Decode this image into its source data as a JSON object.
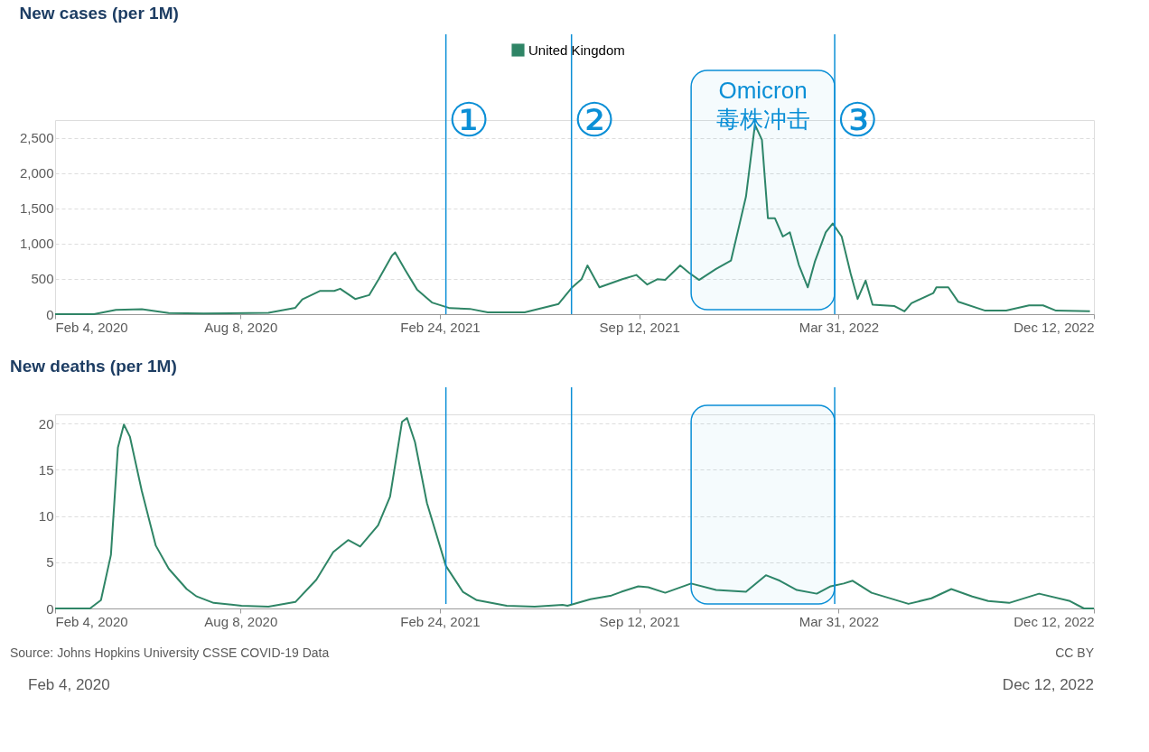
{
  "chart_data": [
    {
      "type": "line",
      "title": "New cases (per 1M)",
      "legend": "top",
      "grid": "y",
      "xlim": [
        "2020-02-04",
        "2022-12-12"
      ],
      "xticks": [
        {
          "value": "2020-02-04",
          "label": "Feb 4, 2020"
        },
        {
          "value": "2020-08-08",
          "label": "Aug 8, 2020"
        },
        {
          "value": "2021-02-24",
          "label": "Feb 24, 2021"
        },
        {
          "value": "2021-09-12",
          "label": "Sep 12, 2021"
        },
        {
          "value": "2022-03-31",
          "label": "Mar 31, 2022"
        },
        {
          "value": "2022-12-12",
          "label": "Dec 12, 2022"
        }
      ],
      "ylim": [
        0,
        2750
      ],
      "yticks": [
        0,
        500,
        {
          "value": 1000,
          "label": "1,000"
        },
        {
          "value": 1500,
          "label": "1,500"
        },
        {
          "value": 2000,
          "label": "2,000"
        },
        {
          "value": 2500,
          "label": "2,500"
        }
      ],
      "series": [
        {
          "name": "United Kingdom",
          "color": "#2f8566",
          "x": [
            "2020-02-04",
            "2020-03-14",
            "2020-04-05",
            "2020-05-01",
            "2020-05-28",
            "2020-07-02",
            "2020-09-05",
            "2020-10-02",
            "2020-10-09",
            "2020-10-27",
            "2020-11-10",
            "2020-11-16",
            "2020-12-01",
            "2020-12-15",
            "2020-12-25",
            "2021-01-07",
            "2021-01-10",
            "2021-01-20",
            "2021-02-01",
            "2021-02-16",
            "2021-03-06",
            "2021-03-26",
            "2021-04-13",
            "2021-05-20",
            "2021-06-23",
            "2021-07-06",
            "2021-07-16",
            "2021-07-22",
            "2021-08-03",
            "2021-08-26",
            "2021-09-09",
            "2021-09-20",
            "2021-09-30",
            "2021-10-08",
            "2021-10-23",
            "2021-11-01",
            "2021-11-11",
            "2021-11-28",
            "2021-12-13",
            "2021-12-28",
            "2022-01-06",
            "2022-01-13",
            "2022-01-19",
            "2022-01-26",
            "2022-02-03",
            "2022-02-10",
            "2022-02-19",
            "2022-02-28",
            "2022-03-07",
            "2022-03-18",
            "2022-03-25",
            "2022-04-03",
            "2022-04-12",
            "2022-04-19",
            "2022-04-27",
            "2022-05-04",
            "2022-05-26",
            "2022-06-05",
            "2022-06-12",
            "2022-07-04",
            "2022-07-07",
            "2022-07-19",
            "2022-07-29",
            "2022-08-25",
            "2022-09-15",
            "2022-10-08",
            "2022-10-22",
            "2022-11-04",
            "2022-12-08"
          ],
          "values": [
            0,
            0,
            60,
            70,
            15,
            10,
            20,
            90,
            210,
            330,
            330,
            360,
            215,
            270,
            505,
            830,
            875,
            630,
            350,
            165,
            85,
            75,
            25,
            25,
            145,
            370,
            495,
            690,
            380,
            495,
            555,
            420,
            495,
            485,
            690,
            585,
            485,
            640,
            760,
            1665,
            2685,
            2470,
            1360,
            1360,
            1100,
            1160,
            700,
            380,
            740,
            1160,
            1285,
            1100,
            575,
            215,
            475,
            135,
            115,
            40,
            155,
            300,
            380,
            380,
            175,
            50,
            50,
            125,
            125,
            50,
            40
          ]
        }
      ],
      "ref_lines": [
        {
          "axis": "x",
          "value": "2021-03-02",
          "label": "①",
          "color": "#0b8fd6"
        },
        {
          "axis": "x",
          "value": "2021-07-06",
          "label": "②",
          "color": "#0b8fd6"
        },
        {
          "axis": "x",
          "value": "2022-03-27",
          "label": "③",
          "color": "#0b8fd6"
        }
      ],
      "bands": [
        {
          "axis": "x",
          "from": "2021-11-03",
          "to": "2022-03-27",
          "label": "Omicron 毒株冲击",
          "color": "#0b8fd6"
        }
      ]
    },
    {
      "type": "line",
      "title": "New deaths (per 1M)",
      "grid": "y",
      "xlim": [
        "2020-02-04",
        "2022-12-12"
      ],
      "xticks": [
        {
          "value": "2020-02-04",
          "label": "Feb 4, 2020"
        },
        {
          "value": "2020-08-08",
          "label": "Aug 8, 2020"
        },
        {
          "value": "2021-02-24",
          "label": "Feb 24, 2021"
        },
        {
          "value": "2021-09-12",
          "label": "Sep 12, 2021"
        },
        {
          "value": "2022-03-31",
          "label": "Mar 31, 2022"
        },
        {
          "value": "2022-12-12",
          "label": "Dec 12, 2022"
        }
      ],
      "ylim": [
        0,
        21
      ],
      "yticks": [
        0,
        5,
        10,
        15,
        20
      ],
      "series": [
        {
          "color": "#2f8566",
          "x": [
            "2020-02-04",
            "2020-03-10",
            "2020-03-21",
            "2020-03-31",
            "2020-04-07",
            "2020-04-13",
            "2020-04-19",
            "2020-05-01",
            "2020-05-15",
            "2020-05-28",
            "2020-06-15",
            "2020-06-25",
            "2020-07-12",
            "2020-08-09",
            "2020-09-05",
            "2020-10-02",
            "2020-10-23",
            "2020-11-09",
            "2020-11-24",
            "2020-12-06",
            "2020-12-24",
            "2021-01-05",
            "2021-01-17",
            "2021-01-22",
            "2021-01-30",
            "2021-02-11",
            "2021-03-02",
            "2021-03-19",
            "2021-04-02",
            "2021-05-02",
            "2021-05-30",
            "2021-06-27",
            "2021-07-02",
            "2021-07-25",
            "2021-08-15",
            "2021-08-25",
            "2021-09-11",
            "2021-09-21",
            "2021-10-08",
            "2021-11-03",
            "2021-11-28",
            "2021-12-28",
            "2022-01-17",
            "2022-01-31",
            "2022-02-17",
            "2022-03-09",
            "2022-03-23",
            "2022-04-05",
            "2022-04-14",
            "2022-05-03",
            "2022-06-09",
            "2022-07-02",
            "2022-07-22",
            "2022-08-12",
            "2022-08-28",
            "2022-09-18",
            "2022-10-18",
            "2022-11-18",
            "2022-12-02",
            "2022-12-12"
          ],
          "values": [
            0,
            0,
            0.9,
            5.8,
            17.4,
            19.9,
            18.6,
            12.7,
            6.8,
            4.3,
            2.1,
            1.3,
            0.6,
            0.3,
            0.2,
            0.7,
            3.1,
            6.1,
            7.4,
            6.7,
            9.0,
            12.1,
            20.2,
            20.6,
            18.0,
            11.4,
            4.6,
            1.8,
            0.9,
            0.3,
            0.2,
            0.4,
            0.3,
            1.0,
            1.4,
            1.8,
            2.4,
            2.3,
            1.7,
            2.7,
            2.0,
            1.8,
            3.6,
            3.0,
            2.0,
            1.6,
            2.4,
            2.7,
            3.0,
            1.7,
            0.5,
            1.1,
            2.1,
            1.3,
            0.8,
            0.6,
            1.6,
            0.8,
            0,
            0
          ]
        }
      ],
      "ref_lines": [
        {
          "axis": "x",
          "value": "2021-03-02",
          "color": "#0b8fd6"
        },
        {
          "axis": "x",
          "value": "2021-07-06",
          "color": "#0b8fd6"
        },
        {
          "axis": "x",
          "value": "2022-03-27",
          "color": "#0b8fd6"
        }
      ],
      "bands": [
        {
          "axis": "x",
          "from": "2021-11-03",
          "to": "2022-03-27",
          "color": "#0b8fd6"
        }
      ],
      "annotations": [
        "Source: Johns Hopkins University CSSE COVID-19 Data",
        "CC BY",
        "Feb 4, 2020",
        "Dec 12, 2022"
      ]
    }
  ]
}
